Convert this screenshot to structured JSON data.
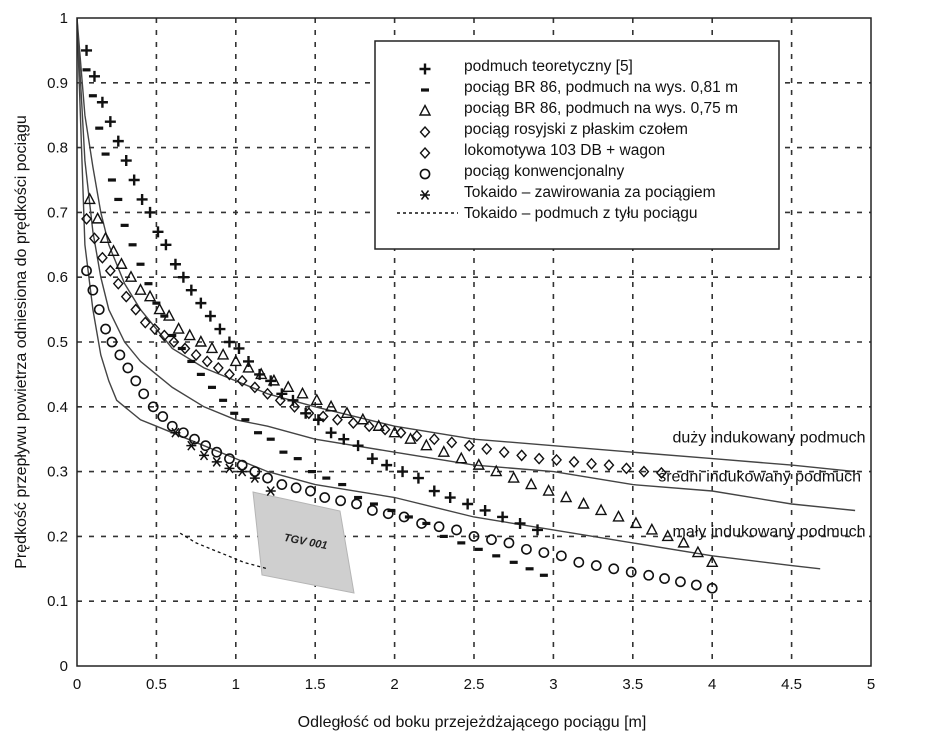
{
  "chart_data": {
    "type": "scatter",
    "xlabel": "Odległość od boku przejeżdżającego pociągu [m]",
    "ylabel": "Prędkość przepływu powietrza odniesiona do prędkości pociągu",
    "xlim": [
      0,
      5
    ],
    "ylim": [
      0,
      1
    ],
    "x_ticks": [
      "0",
      "0.5",
      "1",
      "1.5",
      "2",
      "2.5",
      "3",
      "3.5",
      "4",
      "4.5",
      "5"
    ],
    "y_ticks": [
      "0",
      "0.1",
      "0.2",
      "0.3",
      "0.4",
      "0.5",
      "0.6",
      "0.7",
      "0.8",
      "0.9",
      "1"
    ],
    "grid": true,
    "legend_position": "top-right",
    "series": [
      {
        "name": "podmuch teoretyczny [5]",
        "marker": "plus",
        "x": [
          0.06,
          0.11,
          0.16,
          0.21,
          0.26,
          0.31,
          0.36,
          0.41,
          0.46,
          0.51,
          0.56,
          0.62,
          0.67,
          0.72,
          0.78,
          0.84,
          0.9,
          0.96,
          1.02,
          1.08,
          1.15,
          1.22,
          1.29,
          1.36,
          1.44,
          1.52,
          1.6,
          1.68,
          1.77,
          1.86,
          1.95,
          2.05,
          2.15,
          2.25,
          2.35,
          2.46,
          2.57,
          2.68,
          2.79,
          2.9
        ],
        "y": [
          0.95,
          0.91,
          0.87,
          0.84,
          0.81,
          0.78,
          0.75,
          0.72,
          0.7,
          0.67,
          0.65,
          0.62,
          0.6,
          0.58,
          0.56,
          0.54,
          0.52,
          0.5,
          0.49,
          0.47,
          0.45,
          0.44,
          0.42,
          0.41,
          0.39,
          0.38,
          0.36,
          0.35,
          0.34,
          0.32,
          0.31,
          0.3,
          0.29,
          0.27,
          0.26,
          0.25,
          0.24,
          0.23,
          0.22,
          0.21
        ]
      },
      {
        "name": "pociąg BR 86, podmuch na wys. 0,81 m",
        "marker": "dash",
        "x": [
          0.06,
          0.1,
          0.14,
          0.18,
          0.22,
          0.26,
          0.3,
          0.35,
          0.4,
          0.45,
          0.5,
          0.55,
          0.6,
          0.66,
          0.72,
          0.78,
          0.85,
          0.92,
          0.99,
          1.06,
          1.14,
          1.22,
          1.3,
          1.39,
          1.48,
          1.57,
          1.67,
          1.77,
          1.87,
          1.98,
          2.09,
          2.2,
          2.31,
          2.42,
          2.53,
          2.64,
          2.75,
          2.85,
          2.94
        ],
        "y": [
          0.92,
          0.88,
          0.83,
          0.79,
          0.75,
          0.72,
          0.68,
          0.65,
          0.62,
          0.59,
          0.56,
          0.54,
          0.51,
          0.49,
          0.47,
          0.45,
          0.43,
          0.41,
          0.39,
          0.38,
          0.36,
          0.35,
          0.33,
          0.32,
          0.3,
          0.29,
          0.28,
          0.26,
          0.25,
          0.24,
          0.23,
          0.22,
          0.2,
          0.19,
          0.18,
          0.17,
          0.16,
          0.15,
          0.14
        ]
      },
      {
        "name": "pociąg BR 86, podmuch na wys. 0,75 m",
        "marker": "triangle",
        "x": [
          0.08,
          0.13,
          0.18,
          0.23,
          0.28,
          0.34,
          0.4,
          0.46,
          0.52,
          0.58,
          0.64,
          0.71,
          0.78,
          0.85,
          0.92,
          1.0,
          1.08,
          1.16,
          1.24,
          1.33,
          1.42,
          1.51,
          1.6,
          1.7,
          1.8,
          1.9,
          2.0,
          2.1,
          2.2,
          2.31,
          2.42,
          2.53,
          2.64,
          2.75,
          2.86,
          2.97,
          3.08,
          3.19,
          3.3,
          3.41,
          3.52,
          3.62,
          3.72,
          3.82,
          3.91,
          4.0
        ],
        "y": [
          0.72,
          0.69,
          0.66,
          0.64,
          0.62,
          0.6,
          0.58,
          0.57,
          0.55,
          0.54,
          0.52,
          0.51,
          0.5,
          0.49,
          0.48,
          0.47,
          0.46,
          0.45,
          0.44,
          0.43,
          0.42,
          0.41,
          0.4,
          0.39,
          0.38,
          0.37,
          0.36,
          0.35,
          0.34,
          0.33,
          0.32,
          0.31,
          0.3,
          0.29,
          0.28,
          0.27,
          0.26,
          0.25,
          0.24,
          0.23,
          0.22,
          0.21,
          0.2,
          0.19,
          0.175,
          0.16
        ]
      },
      {
        "name": "pociąg rosyjski z płaskim czołem",
        "marker": "diamond",
        "x": [
          0.06,
          0.11,
          0.16,
          0.21,
          0.26,
          0.31,
          0.37,
          0.43,
          0.49,
          0.55,
          0.61,
          0.68,
          0.75,
          0.82,
          0.89,
          0.96,
          1.04,
          1.12,
          1.2,
          1.28,
          1.37,
          1.46,
          1.55,
          1.64,
          1.74,
          1.84,
          1.94,
          2.04,
          2.14,
          2.25,
          2.36,
          2.47,
          2.58,
          2.69,
          2.8,
          2.91,
          3.02,
          3.13,
          3.24,
          3.35,
          3.46,
          3.57,
          3.68
        ],
        "y": [
          0.69,
          0.66,
          0.63,
          0.61,
          0.59,
          0.57,
          0.55,
          0.53,
          0.52,
          0.51,
          0.5,
          0.49,
          0.48,
          0.47,
          0.46,
          0.45,
          0.44,
          0.43,
          0.42,
          0.41,
          0.4,
          0.39,
          0.385,
          0.38,
          0.375,
          0.37,
          0.365,
          0.36,
          0.355,
          0.35,
          0.345,
          0.34,
          0.335,
          0.33,
          0.325,
          0.32,
          0.318,
          0.315,
          0.312,
          0.31,
          0.305,
          0.3,
          0.298
        ]
      },
      {
        "name": "lokomotywa 103 DB + wagon",
        "marker": "diamond",
        "x": [],
        "y": []
      },
      {
        "name": "pociąg konwencjonalny",
        "marker": "circle",
        "x": [
          0.06,
          0.1,
          0.14,
          0.18,
          0.22,
          0.27,
          0.32,
          0.37,
          0.42,
          0.48,
          0.54,
          0.6,
          0.67,
          0.74,
          0.81,
          0.88,
          0.96,
          1.04,
          1.12,
          1.2,
          1.29,
          1.38,
          1.47,
          1.56,
          1.66,
          1.76,
          1.86,
          1.96,
          2.06,
          2.17,
          2.28,
          2.39,
          2.5,
          2.61,
          2.72,
          2.83,
          2.94,
          3.05,
          3.16,
          3.27,
          3.38,
          3.49,
          3.6,
          3.7,
          3.8,
          3.9,
          4.0
        ],
        "y": [
          0.61,
          0.58,
          0.55,
          0.52,
          0.5,
          0.48,
          0.46,
          0.44,
          0.42,
          0.4,
          0.385,
          0.37,
          0.36,
          0.35,
          0.34,
          0.33,
          0.32,
          0.31,
          0.3,
          0.29,
          0.28,
          0.275,
          0.27,
          0.26,
          0.255,
          0.25,
          0.24,
          0.235,
          0.23,
          0.22,
          0.215,
          0.21,
          0.2,
          0.195,
          0.19,
          0.18,
          0.175,
          0.17,
          0.16,
          0.155,
          0.15,
          0.145,
          0.14,
          0.135,
          0.13,
          0.125,
          0.12
        ]
      },
      {
        "name": "Tokaido – zawirowania za pociągiem",
        "marker": "asterisk",
        "x": [
          0.62,
          0.72,
          0.8,
          0.88,
          0.96,
          1.04,
          1.12,
          1.22
        ],
        "y": [
          0.36,
          0.34,
          0.325,
          0.315,
          0.305,
          0.3,
          0.29,
          0.27
        ]
      },
      {
        "name": "Tokaido – podmuch z tyłu pociągu",
        "marker": "dashed-line",
        "x": [
          0.65,
          0.75,
          0.85,
          0.95,
          1.05,
          1.2
        ],
        "y": [
          0.205,
          0.19,
          0.18,
          0.17,
          0.16,
          0.15
        ]
      }
    ],
    "curves": [
      {
        "name": "duży indukowany podmuch",
        "x": [
          0.0,
          0.05,
          0.1,
          0.15,
          0.2,
          0.3,
          0.4,
          0.5,
          0.6,
          0.8,
          1.0,
          1.2,
          1.5,
          2.0,
          2.5,
          3.0,
          3.5,
          4.0,
          4.5,
          4.9
        ],
        "y": [
          1.0,
          0.85,
          0.77,
          0.7,
          0.65,
          0.59,
          0.55,
          0.52,
          0.49,
          0.46,
          0.44,
          0.42,
          0.4,
          0.37,
          0.35,
          0.34,
          0.33,
          0.32,
          0.31,
          0.3
        ]
      },
      {
        "name": "średni indukowany podmuch",
        "x": [
          0.0,
          0.05,
          0.1,
          0.15,
          0.2,
          0.3,
          0.4,
          0.5,
          0.6,
          0.8,
          1.0,
          1.2,
          1.5,
          2.0,
          2.5,
          3.0,
          3.5,
          4.0,
          4.5,
          4.9
        ],
        "y": [
          1.0,
          0.78,
          0.67,
          0.6,
          0.55,
          0.5,
          0.47,
          0.45,
          0.43,
          0.4,
          0.38,
          0.37,
          0.35,
          0.33,
          0.31,
          0.3,
          0.28,
          0.27,
          0.25,
          0.24
        ]
      },
      {
        "name": "mały indukowany podmuch",
        "x": [
          0.0,
          0.05,
          0.1,
          0.15,
          0.2,
          0.25,
          0.3,
          0.4,
          0.5,
          0.6,
          0.8,
          1.0,
          1.2,
          1.5,
          2.0,
          2.5,
          3.0,
          3.5,
          4.0,
          4.5,
          4.68
        ],
        "y": [
          1.0,
          0.65,
          0.55,
          0.48,
          0.44,
          0.41,
          0.4,
          0.38,
          0.37,
          0.36,
          0.34,
          0.32,
          0.3,
          0.28,
          0.26,
          0.23,
          0.21,
          0.19,
          0.17,
          0.155,
          0.15
        ]
      }
    ],
    "annotations": [
      {
        "text": "duży indukowany podmuch",
        "x": 3.75,
        "y": 0.345
      },
      {
        "text": "średni indukowany podmuch",
        "x": 3.66,
        "y": 0.285
      },
      {
        "text": "mały indukowany podmuch",
        "x": 3.75,
        "y": 0.2
      }
    ],
    "image_label": {
      "text": "TGV 001",
      "x": 1.45,
      "y": 0.2
    }
  }
}
